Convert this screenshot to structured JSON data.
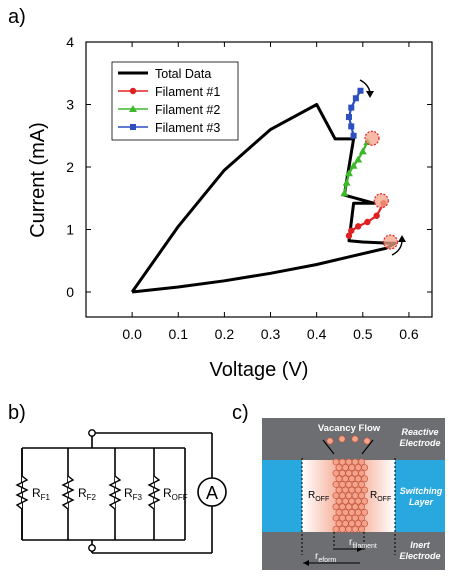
{
  "panels": {
    "a": "a)",
    "b": "b)",
    "c": "c)"
  },
  "chart_data": {
    "type": "line",
    "xlabel": "Voltage (V)",
    "ylabel": "Current (mA)",
    "xlim": [
      -0.1,
      0.65
    ],
    "ylim": [
      -0.4,
      4.0
    ],
    "xticks": [
      "0.0",
      "0.1",
      "0.2",
      "0.3",
      "0.4",
      "0.5",
      "0.6"
    ],
    "xtick_values": [
      0.0,
      0.1,
      0.2,
      0.3,
      0.4,
      0.5,
      0.6
    ],
    "yticks": [
      "0",
      "1",
      "2",
      "3",
      "4"
    ],
    "ytick_values": [
      0,
      1,
      2,
      3,
      4
    ],
    "legend_position": "top-left",
    "series": [
      {
        "name": "Total Data",
        "color": "#000000",
        "marker": "none",
        "x": [
          0.0,
          0.1,
          0.2,
          0.3,
          0.4,
          0.48,
          0.55,
          0.57,
          0.56,
          0.5,
          0.47,
          0.48,
          0.525,
          0.46,
          0.48,
          0.44,
          0.4,
          0.3,
          0.2,
          0.1,
          0.0
        ],
        "y": [
          0.0,
          0.08,
          0.18,
          0.3,
          0.44,
          0.58,
          0.7,
          0.78,
          0.78,
          0.8,
          0.82,
          1.42,
          1.42,
          1.55,
          2.45,
          2.45,
          3.0,
          2.6,
          1.95,
          1.05,
          0.0
        ]
      },
      {
        "name": "Filament #1",
        "color": "#e02020",
        "marker": "circle",
        "x": [
          0.47,
          0.475,
          0.49,
          0.51,
          0.53,
          0.545
        ],
        "y": [
          0.9,
          0.98,
          1.05,
          1.12,
          1.22,
          1.42
        ]
      },
      {
        "name": "Filament #2",
        "color": "#3cb82a",
        "marker": "triangle",
        "x": [
          0.46,
          0.465,
          0.47,
          0.48,
          0.49,
          0.5,
          0.51
        ],
        "y": [
          1.58,
          1.75,
          1.9,
          2.02,
          2.12,
          2.25,
          2.4
        ]
      },
      {
        "name": "Filament #3",
        "color": "#2d4fbf",
        "marker": "square",
        "x": [
          0.48,
          0.475,
          0.47,
          0.475,
          0.485,
          0.495
        ],
        "y": [
          2.5,
          2.65,
          2.8,
          2.95,
          3.1,
          3.22
        ]
      }
    ],
    "highlights": [
      {
        "x": 0.56,
        "y": 0.8
      },
      {
        "x": 0.54,
        "y": 1.46
      },
      {
        "x": 0.52,
        "y": 2.46
      }
    ]
  },
  "circuit": {
    "r1": {
      "base": "R",
      "sub": "F1"
    },
    "r2": {
      "base": "R",
      "sub": "F2"
    },
    "r3": {
      "base": "R",
      "sub": "F3"
    },
    "r4": {
      "base": "R",
      "sub": "OFF"
    },
    "meter": "A"
  },
  "device": {
    "vacancy_flow": "Vacancy Flow",
    "reactive": [
      "Reactive",
      "Electrode"
    ],
    "switching": [
      "Switching",
      "Layer"
    ],
    "inert": [
      "Inert",
      "Electrode"
    ],
    "roff_left": {
      "base": "R",
      "sub": "OFF"
    },
    "roff_right": {
      "base": "R",
      "sub": "OFF"
    },
    "r_eform": {
      "base": "r",
      "sub": "eform"
    },
    "r_filament": {
      "base": "r",
      "sub": "filament"
    },
    "colors": {
      "electrode": "#6d6e71",
      "switching": "#29a8e0",
      "filament": "#f4a38a"
    }
  }
}
